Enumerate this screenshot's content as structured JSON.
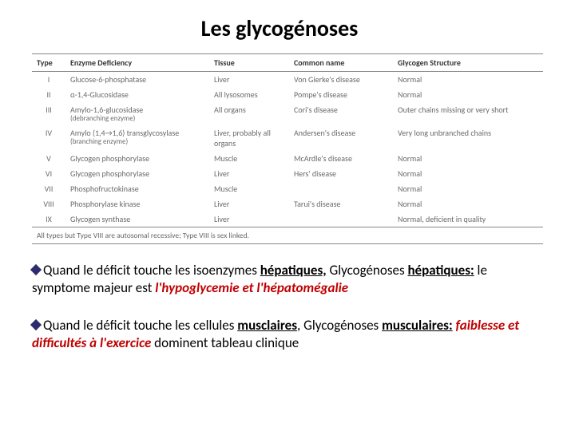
{
  "title": "Les glycogénoses",
  "table": {
    "headers": [
      "Type",
      "Enzyme Deficiency",
      "Tissue",
      "Common name",
      "Glycogen Structure"
    ],
    "rows": [
      {
        "type": "I",
        "enzyme": "Glucose-6-phosphatase",
        "enzyme_sub": "",
        "tissue": "Liver",
        "common": "Von Gierke's disease",
        "glyc": "Normal"
      },
      {
        "type": "II",
        "enzyme": "α-1,4-Glucosidase",
        "enzyme_sub": "",
        "tissue": "All lysosomes",
        "common": "Pompe's disease",
        "glyc": "Normal"
      },
      {
        "type": "III",
        "enzyme": "Amylo-1,6-glucosidase",
        "enzyme_sub": "(debranching enzyme)",
        "tissue": "All organs",
        "common": "Cori's disease",
        "glyc": "Outer chains missing or very short"
      },
      {
        "type": "IV",
        "enzyme": "Amylo (1,4→1,6) transglycosylase",
        "enzyme_sub": "(branching enzyme)",
        "tissue": "Liver, probably all organs",
        "common": "Andersen's disease",
        "glyc": "Very long unbranched chains"
      },
      {
        "type": "V",
        "enzyme": "Glycogen phosphorylase",
        "enzyme_sub": "",
        "tissue": "Muscle",
        "common": "McArdle's disease",
        "glyc": "Normal"
      },
      {
        "type": "VI",
        "enzyme": "Glycogen phosphorylase",
        "enzyme_sub": "",
        "tissue": "Liver",
        "common": "Hers' disease",
        "glyc": "Normal"
      },
      {
        "type": "VII",
        "enzyme": "Phosphofructokinase",
        "enzyme_sub": "",
        "tissue": "Muscle",
        "common": "",
        "glyc": "Normal"
      },
      {
        "type": "VIII",
        "enzyme": "Phosphorylase kinase",
        "enzyme_sub": "",
        "tissue": "Liver",
        "common": "Tarui's disease",
        "glyc": "Normal"
      },
      {
        "type": "IX",
        "enzyme": "Glycogen synthase",
        "enzyme_sub": "",
        "tissue": "Liver",
        "common": "",
        "glyc": "Normal, deficient in quality"
      }
    ],
    "footer": "All types but Type VIII are autosomal recessive; Type VIII is sex linked."
  },
  "bullets": {
    "b1": {
      "pre": "Quand le déficit touche les isoenzymes ",
      "kw1": "hépatiques,",
      "mid": "  Glycogénoses ",
      "kw2": "hépatiques:",
      "post1": " le symptome majeur est ",
      "accent": "l'hypoglycemie et l'hépatomégalie"
    },
    "b2": {
      "pre": "Quand le déficit touche les cellules ",
      "kw1": "musclaires",
      "mid": ",  Glycogénoses ",
      "kw2": "musculaires:",
      "post1": " ",
      "accent": "faiblesse et difficultés à l'exercice",
      "post2": " dominent tableau clinique"
    }
  }
}
